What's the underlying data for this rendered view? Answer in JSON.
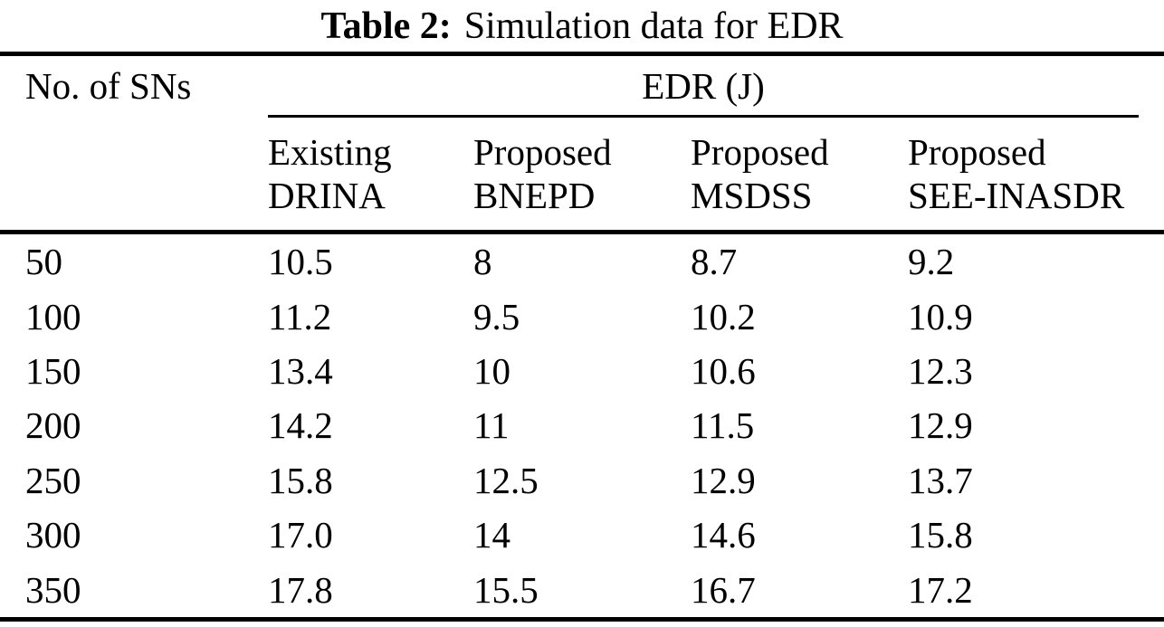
{
  "caption": {
    "label": "Table 2:",
    "text": "Simulation data for EDR"
  },
  "table": {
    "row_header": "No. of SNs",
    "group_header": "EDR (J)",
    "columns": [
      {
        "line1": "Existing",
        "line2": "DRINA"
      },
      {
        "line1": "Proposed",
        "line2": "BNEPD"
      },
      {
        "line1": "Proposed",
        "line2": "MSDSS"
      },
      {
        "line1": "Proposed",
        "line2": "SEE-INASDR"
      }
    ],
    "rows": [
      {
        "sns": "50",
        "values": [
          "10.5",
          "8",
          "8.7",
          "9.2"
        ]
      },
      {
        "sns": "100",
        "values": [
          "11.2",
          "9.5",
          "10.2",
          "10.9"
        ]
      },
      {
        "sns": "150",
        "values": [
          "13.4",
          "10",
          "10.6",
          "12.3"
        ]
      },
      {
        "sns": "200",
        "values": [
          "14.2",
          "11",
          "11.5",
          "12.9"
        ]
      },
      {
        "sns": "250",
        "values": [
          "15.8",
          "12.5",
          "12.9",
          "13.7"
        ]
      },
      {
        "sns": "300",
        "values": [
          "17.0",
          "14",
          "14.6",
          "15.8"
        ]
      },
      {
        "sns": "350",
        "values": [
          "17.8",
          "15.5",
          "16.7",
          "17.2"
        ]
      }
    ]
  },
  "colors": {
    "text": "#000000",
    "background": "#ffffff",
    "rule": "#000000"
  },
  "chart_data": {
    "type": "table",
    "title": "Table 2: Simulation data for EDR",
    "xlabel": "No. of SNs",
    "ylabel": "EDR (J)",
    "categories": [
      50,
      100,
      150,
      200,
      250,
      300,
      350
    ],
    "series": [
      {
        "name": "Existing DRINA",
        "values": [
          10.5,
          11.2,
          13.4,
          14.2,
          15.8,
          17.0,
          17.8
        ]
      },
      {
        "name": "Proposed BNEPD",
        "values": [
          8,
          9.5,
          10,
          11,
          12.5,
          14,
          15.5
        ]
      },
      {
        "name": "Proposed MSDSS",
        "values": [
          8.7,
          10.2,
          10.6,
          11.5,
          12.9,
          14.6,
          16.7
        ]
      },
      {
        "name": "Proposed SEE-INASDR",
        "values": [
          9.2,
          10.9,
          12.3,
          12.9,
          13.7,
          15.8,
          17.2
        ]
      }
    ]
  }
}
